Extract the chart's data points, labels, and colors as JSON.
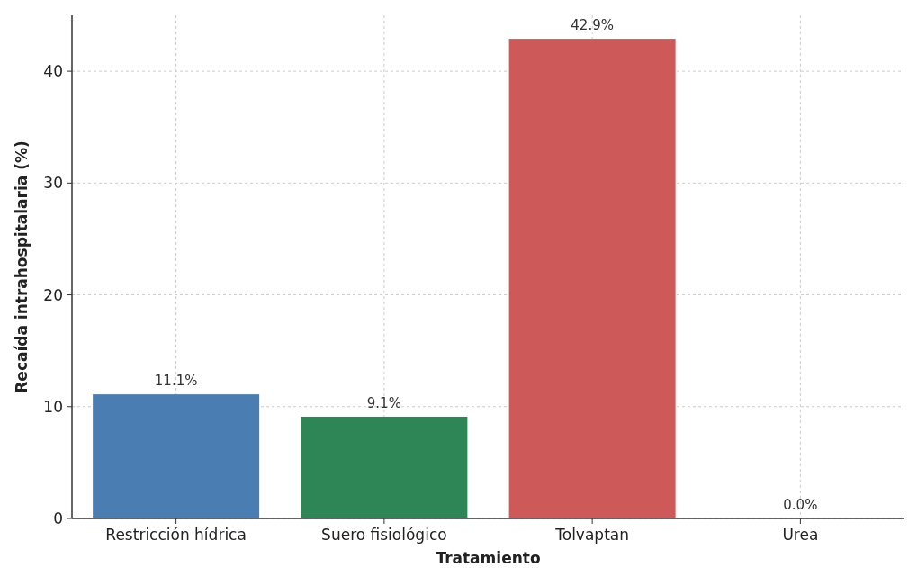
{
  "chart_data": {
    "type": "bar",
    "xlabel": "Tratamiento",
    "ylabel": "Recaída intrahospitalaria (%)",
    "categories": [
      "Restricción hídrica",
      "Suero fisiológico",
      "Tolvaptan",
      "Urea"
    ],
    "values": [
      11.1,
      9.1,
      42.9,
      0.0
    ],
    "colors": [
      "#4a7eb3",
      "#2e8555",
      "#cd5a58",
      "#7f7f7f"
    ],
    "value_labels": [
      "11.1%",
      "9.1%",
      "42.9%",
      "0.0%"
    ],
    "ylim": [
      0,
      45
    ],
    "yticks": [
      0,
      10,
      20,
      30,
      40
    ],
    "grid": true
  }
}
